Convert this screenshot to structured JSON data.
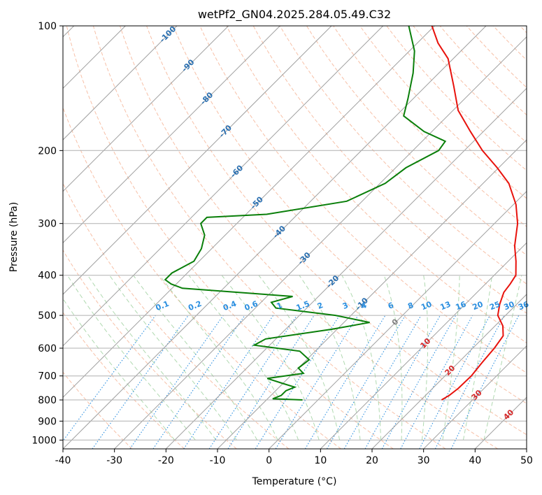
{
  "chart_data": {
    "type": "line",
    "title": "wetPf2_GN04.2025.284.05.49.C32",
    "xlabel": "Temperature (°C)",
    "ylabel": "Pressure (hPa)",
    "xlim": [
      -40,
      50
    ],
    "ylim": [
      1050,
      100
    ],
    "y_scale": "log",
    "x_ticks": [
      -40,
      -30,
      -20,
      -10,
      0,
      10,
      20,
      30,
      40,
      50
    ],
    "y_ticks": [
      1000,
      900,
      800,
      700,
      600,
      500,
      400,
      300,
      200,
      100
    ],
    "grid": true,
    "skew_t": true,
    "colors": {
      "temperature": "#e8120c",
      "dewpoint": "#0a7f0a",
      "isotherm": "#a0a0a0",
      "isobar": "#b0b0b0",
      "dry_adiabat": "#f4a582",
      "moist_adiabat": "#9ccf9c",
      "mixing_ratio": "#2b8fe0",
      "label_blue": "#2a6fb0",
      "label_red": "#d62728",
      "label_gray": "#808080"
    },
    "series": [
      {
        "name": "",
        "role": "temperature",
        "points": [
          {
            "p": 800,
            "t": 24
          },
          {
            "p": 780,
            "t": 24.6
          },
          {
            "p": 750,
            "t": 25
          },
          {
            "p": 700,
            "t": 25.1
          },
          {
            "p": 650,
            "t": 24.6
          },
          {
            "p": 600,
            "t": 24.2
          },
          {
            "p": 560,
            "t": 23.5
          },
          {
            "p": 530,
            "t": 21.5
          },
          {
            "p": 500,
            "t": 18.5
          },
          {
            "p": 470,
            "t": 16.7
          },
          {
            "p": 440,
            "t": 15.2
          },
          {
            "p": 420,
            "t": 14.8
          },
          {
            "p": 400,
            "t": 14.2
          },
          {
            "p": 370,
            "t": 11.5
          },
          {
            "p": 340,
            "t": 8.3
          },
          {
            "p": 300,
            "t": 4.5
          },
          {
            "p": 270,
            "t": 0.5
          },
          {
            "p": 240,
            "t": -5
          },
          {
            "p": 220,
            "t": -10.3
          },
          {
            "p": 200,
            "t": -16.5
          },
          {
            "p": 180,
            "t": -22.5
          },
          {
            "p": 160,
            "t": -29
          },
          {
            "p": 140,
            "t": -34.5
          },
          {
            "p": 120,
            "t": -41
          },
          {
            "p": 110,
            "t": -46
          },
          {
            "p": 100,
            "t": -50.5
          }
        ]
      },
      {
        "name": "",
        "role": "dewpoint",
        "points": [
          {
            "p": 800,
            "t": -3
          },
          {
            "p": 795,
            "t": -9
          },
          {
            "p": 780,
            "t": -8
          },
          {
            "p": 760,
            "t": -8
          },
          {
            "p": 745,
            "t": -7
          },
          {
            "p": 730,
            "t": -10
          },
          {
            "p": 710,
            "t": -14
          },
          {
            "p": 690,
            "t": -8
          },
          {
            "p": 670,
            "t": -10
          },
          {
            "p": 640,
            "t": -9.5
          },
          {
            "p": 610,
            "t": -13
          },
          {
            "p": 590,
            "t": -23
          },
          {
            "p": 570,
            "t": -22
          },
          {
            "p": 540,
            "t": -11
          },
          {
            "p": 520,
            "t": -5
          },
          {
            "p": 500,
            "t": -13
          },
          {
            "p": 480,
            "t": -26
          },
          {
            "p": 465,
            "t": -28
          },
          {
            "p": 450,
            "t": -25
          },
          {
            "p": 430,
            "t": -48
          },
          {
            "p": 420,
            "t": -51
          },
          {
            "p": 410,
            "t": -53
          },
          {
            "p": 395,
            "t": -53
          },
          {
            "p": 370,
            "t": -51
          },
          {
            "p": 345,
            "t": -52
          },
          {
            "p": 320,
            "t": -54
          },
          {
            "p": 300,
            "t": -57
          },
          {
            "p": 290,
            "t": -57
          },
          {
            "p": 285,
            "t": -46
          },
          {
            "p": 265,
            "t": -33
          },
          {
            "p": 240,
            "t": -29
          },
          {
            "p": 220,
            "t": -28
          },
          {
            "p": 200,
            "t": -25
          },
          {
            "p": 190,
            "t": -25.5
          },
          {
            "p": 180,
            "t": -31.5
          },
          {
            "p": 165,
            "t": -38.5
          },
          {
            "p": 150,
            "t": -41
          },
          {
            "p": 130,
            "t": -45
          },
          {
            "p": 115,
            "t": -49
          },
          {
            "p": 100,
            "t": -55
          }
        ]
      }
    ],
    "isotherm_labels": [
      "-100",
      "-90",
      "-80",
      "-70",
      "-60",
      "-50",
      "-40",
      "-30",
      "-20",
      "-10",
      "0",
      "10",
      "20",
      "30",
      "40"
    ],
    "mixing_ratio_labels": [
      "0.1",
      "0.2",
      "0.4",
      "0.6",
      "1",
      "1.5",
      "2",
      "3",
      "4",
      "6",
      "8",
      "10",
      "13",
      "16",
      "20",
      "25",
      "30",
      "36"
    ]
  }
}
